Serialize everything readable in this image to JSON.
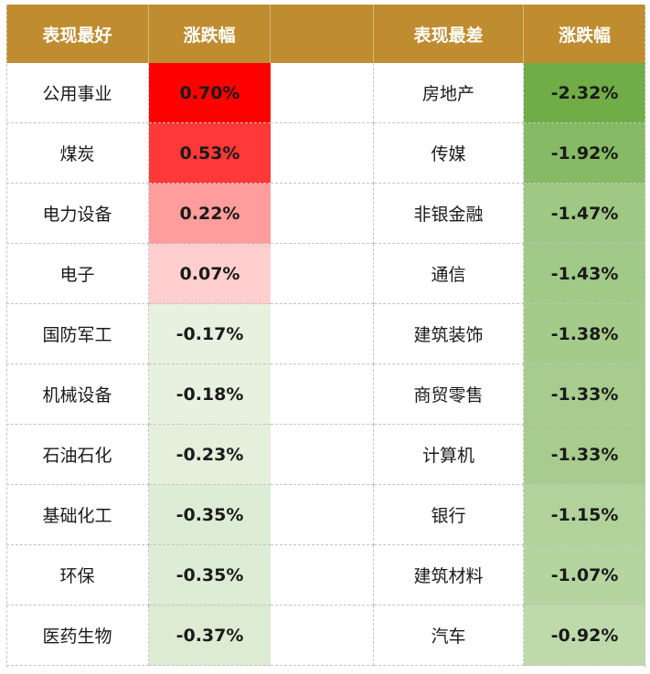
{
  "chart_data": {
    "type": "table",
    "headers": {
      "left_name": "表现最好",
      "left_value": "涨跌幅",
      "right_name": "表现最差",
      "right_value": "涨跌幅"
    },
    "best": [
      {
        "name": "公用事业",
        "value": 0.7,
        "label": "0.70%"
      },
      {
        "name": "煤炭",
        "value": 0.53,
        "label": "0.53%"
      },
      {
        "name": "电力设备",
        "value": 0.22,
        "label": "0.22%"
      },
      {
        "name": "电子",
        "value": 0.07,
        "label": "0.07%"
      },
      {
        "name": "国防军工",
        "value": -0.17,
        "label": "-0.17%"
      },
      {
        "name": "机械设备",
        "value": -0.18,
        "label": "-0.18%"
      },
      {
        "name": "石油石化",
        "value": -0.23,
        "label": "-0.23%"
      },
      {
        "name": "基础化工",
        "value": -0.35,
        "label": "-0.35%"
      },
      {
        "name": "环保",
        "value": -0.35,
        "label": "-0.35%"
      },
      {
        "name": "医药生物",
        "value": -0.37,
        "label": "-0.37%"
      }
    ],
    "worst": [
      {
        "name": "房地产",
        "value": -2.32,
        "label": "-2.32%"
      },
      {
        "name": "传媒",
        "value": -1.92,
        "label": "-1.92%"
      },
      {
        "name": "非银金融",
        "value": -1.47,
        "label": "-1.47%"
      },
      {
        "name": "通信",
        "value": -1.43,
        "label": "-1.43%"
      },
      {
        "name": "建筑装饰",
        "value": -1.38,
        "label": "-1.38%"
      },
      {
        "name": "商贸零售",
        "value": -1.33,
        "label": "-1.33%"
      },
      {
        "name": "计算机",
        "value": -1.33,
        "label": "-1.33%"
      },
      {
        "name": "银行",
        "value": -1.15,
        "label": "-1.15%"
      },
      {
        "name": "建筑材料",
        "value": -1.07,
        "label": "-1.07%"
      },
      {
        "name": "汽车",
        "value": -0.92,
        "label": "-0.92%"
      }
    ],
    "colors": {
      "header_bg": "#bf8c30",
      "header_text": "#ffffff",
      "gain_scale": [
        "#ffffff",
        "#ff0000"
      ],
      "loss_scale": [
        "#ffffff",
        "#70ad47"
      ]
    }
  }
}
